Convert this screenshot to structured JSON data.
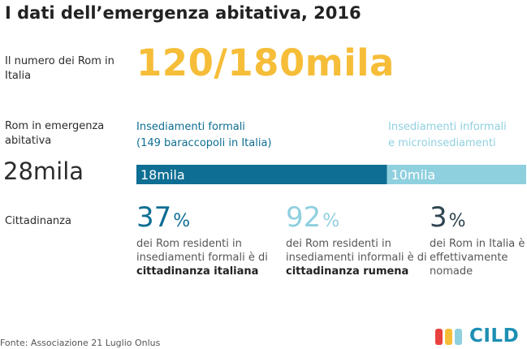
{
  "title": "I dati dell’emergenza abitativa, 2016",
  "rows": {
    "population_label": "Il numero dei Rom in Italia",
    "emergency_label": "Rom in emergenza abitativa",
    "citizenship_label": "Cittadinanza"
  },
  "population_value": "120/180mila",
  "emergency_total": "28mila",
  "categories": {
    "formal_title": "Insediamenti formali",
    "formal_note": "(149 baraccopoli in Italia)",
    "informal_title": "Insediamenti informali",
    "informal_note": "e microinsediamenti"
  },
  "stats": [
    {
      "value": "37",
      "unit": "%",
      "text": "dei Rom residenti in insediamenti formali è di",
      "bold": "cittadinanza italiana"
    },
    {
      "value": "92",
      "unit": "%",
      "text": "dei Rom residenti in insediamenti informali è di",
      "bold": "cittadinanza rumena"
    },
    {
      "value": "3",
      "unit": "%",
      "text": "dei Rom in Italia è effettivamente nomade",
      "bold": ""
    }
  ],
  "source": "Fonte: Associazione 21 Luglio Onlus",
  "logo_text": "CILD",
  "colors": {
    "formal": "#0e6e93",
    "informal": "#8fd0df",
    "highlight": "#f6bd38",
    "logo_bars": [
      "#e8423f",
      "#f6bd38",
      "#8fd0df"
    ]
  },
  "chart_data": {
    "type": "bar",
    "orientation": "horizontal-stacked",
    "categories": [
      "Insediamenti formali",
      "Insediamenti informali e microinsediamenti"
    ],
    "values": [
      18,
      10
    ],
    "value_labels": [
      "18mila",
      "10mila"
    ],
    "total_label": "28mila"
  }
}
